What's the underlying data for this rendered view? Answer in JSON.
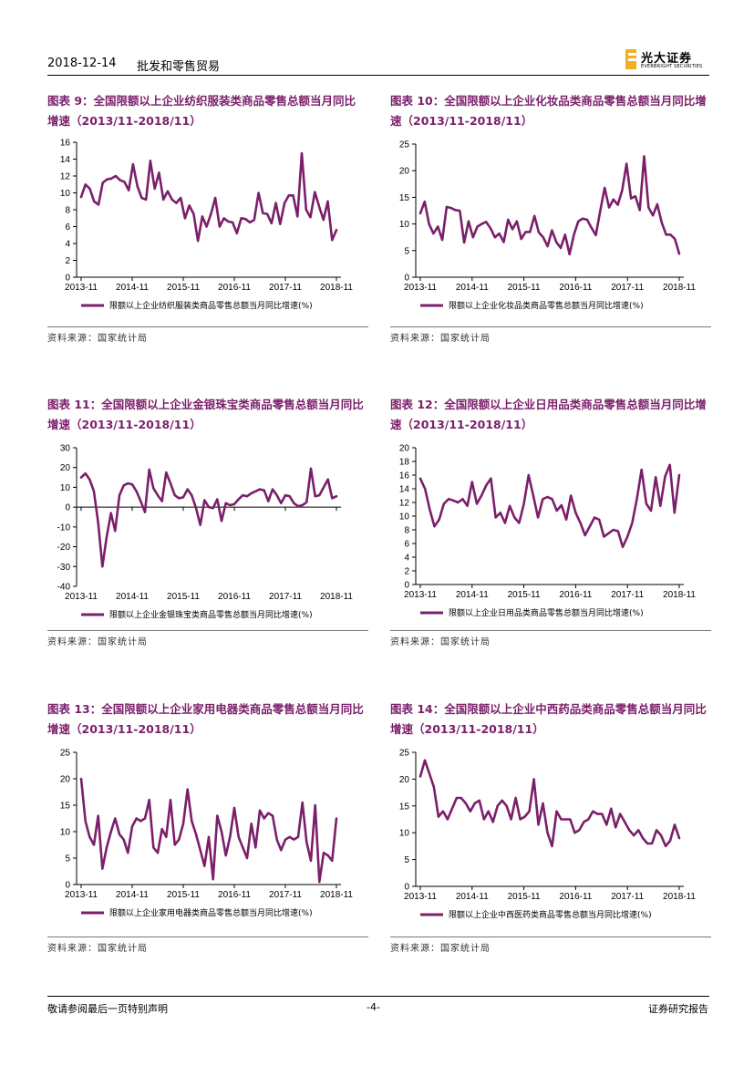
{
  "header": {
    "date": "2018-12-14",
    "sector": "批发和零售贸易",
    "logo_cn": "光大证券",
    "logo_en": "EVERBRIGHT SECURITIES"
  },
  "footer": {
    "disclaimer": "敬请参阅最后一页特别声明",
    "page": "-4-",
    "report_type": "证券研究报告"
  },
  "colors": {
    "series": "#7b1f6a",
    "title": "#7b1f6a"
  },
  "chart_data": [
    {
      "id": "fig9",
      "type": "line",
      "title": "图表 9：全国限额以上企业纺织服装类商品零售总额当月同比增速（2013/11-2018/11）",
      "source": "资料来源：国家统计局",
      "legend": "限额以上企业纺织服装类商品零售总额当月同比增速(%)",
      "x_ticks": [
        "2013-11",
        "2014-11",
        "2015-11",
        "2016-11",
        "2017-11",
        "2018-11"
      ],
      "y_ticks": [
        0,
        2,
        4,
        6,
        8,
        10,
        12,
        14,
        16
      ],
      "ylim": [
        0,
        16
      ],
      "values": [
        9.5,
        11.0,
        10.5,
        9.0,
        8.6,
        11.2,
        11.6,
        11.7,
        12.0,
        11.5,
        11.3,
        10.3,
        13.4,
        10.8,
        9.4,
        9.2,
        13.8,
        10.5,
        12.4,
        9.2,
        10.2,
        9.2,
        8.8,
        9.4,
        7.0,
        8.5,
        7.5,
        4.3,
        7.2,
        6.0,
        7.5,
        9.4,
        6.0,
        7.0,
        6.6,
        6.5,
        5.2,
        7.0,
        6.9,
        6.5,
        6.8,
        10.0,
        7.6,
        7.5,
        6.4,
        8.8,
        6.3,
        8.8,
        9.7,
        9.7,
        7.2,
        14.7,
        8.0,
        7.1,
        10.1,
        8.4,
        6.8,
        9.0,
        4.4,
        5.6
      ]
    },
    {
      "id": "fig10",
      "type": "line",
      "title": "图表 10：全国限额以上企业化妆品类商品零售总额当月同比增速（2013/11-2018/11）",
      "source": "资料来源：国家统计局",
      "legend": "限额以上企业化妆品类商品零售总额当月同比增速(%)",
      "x_ticks": [
        "2013-11",
        "2014-11",
        "2015-11",
        "2016-11",
        "2017-11",
        "2018-11"
      ],
      "y_ticks": [
        0,
        5,
        10,
        15,
        20,
        25
      ],
      "ylim": [
        0,
        25
      ],
      "values": [
        12.0,
        14.2,
        10.0,
        8.2,
        9.5,
        7.0,
        13.2,
        13.0,
        12.6,
        12.5,
        6.5,
        10.5,
        7.5,
        9.5,
        10.0,
        10.4,
        9.2,
        7.5,
        8.2,
        6.6,
        10.8,
        9.0,
        10.5,
        7.2,
        8.5,
        8.5,
        11.5,
        8.4,
        7.5,
        5.8,
        8.8,
        6.6,
        5.5,
        8.0,
        4.3,
        8.0,
        10.5,
        11.0,
        10.8,
        9.3,
        7.9,
        12.5,
        16.8,
        13.1,
        14.6,
        13.6,
        16.3,
        21.3,
        14.8,
        15.2,
        12.6,
        22.7,
        13.1,
        11.6,
        13.7,
        10.3,
        8.0,
        8.0,
        7.2,
        4.4
      ]
    },
    {
      "id": "fig11",
      "type": "line",
      "title": "图表 11：全国限额以上企业金银珠宝类商品零售总额当月同比增速（2013/11-2018/11）",
      "source": "资料来源：国家统计局",
      "legend": "限额以上企业金银珠宝类商品零售总额当月同比增速(%)",
      "x_ticks": [
        "2013-11",
        "2014-11",
        "2015-11",
        "2016-11",
        "2017-11",
        "2018-11"
      ],
      "y_ticks": [
        -40,
        -30,
        -20,
        -10,
        0,
        10,
        20,
        30
      ],
      "ylim": [
        -40,
        30
      ],
      "values": [
        15.0,
        17.0,
        14.0,
        8.0,
        -8.0,
        -30.0,
        -15.0,
        -3.0,
        -12.0,
        6.0,
        11.0,
        12.0,
        11.5,
        8.0,
        3.0,
        -2.5,
        19.0,
        9.5,
        6.0,
        3.0,
        17.5,
        12.0,
        6.0,
        4.5,
        5.0,
        9.0,
        6.0,
        -0.5,
        -9.0,
        3.5,
        0.0,
        -0.5,
        4.0,
        -7.0,
        2.0,
        1.0,
        1.5,
        4.0,
        6.0,
        5.5,
        7.0,
        8.0,
        9.0,
        8.5,
        3.0,
        9.0,
        6.0,
        2.0,
        6.0,
        5.5,
        2.0,
        0.5,
        1.0,
        2.5,
        19.5,
        5.5,
        6.0,
        10.0,
        14.0,
        4.5,
        5.5
      ]
    },
    {
      "id": "fig12",
      "type": "line",
      "title": "图表 12：全国限额以上企业日用品类商品零售总额当月同比增速（2013/11-2018/11）",
      "source": "资料来源：国家统计局",
      "legend": "限额以上企业日用品类商品零售总额当月同比增速(%)",
      "x_ticks": [
        "2013-11",
        "2014-11",
        "2015-11",
        "2016-11",
        "2017-11",
        "2018-11"
      ],
      "y_ticks": [
        0,
        2,
        4,
        6,
        8,
        10,
        12,
        14,
        16,
        18,
        20
      ],
      "ylim": [
        0,
        20
      ],
      "values": [
        15.5,
        14.0,
        11.0,
        8.5,
        9.5,
        11.8,
        12.5,
        12.3,
        12.0,
        12.5,
        11.5,
        15.0,
        11.8,
        13.0,
        14.5,
        15.5,
        9.8,
        10.5,
        9.0,
        11.5,
        9.8,
        9.0,
        11.8,
        16.0,
        13.0,
        9.8,
        12.5,
        12.8,
        12.5,
        10.8,
        11.6,
        9.5,
        13.0,
        10.5,
        9.0,
        7.2,
        8.5,
        9.8,
        9.5,
        7.0,
        7.5,
        8.0,
        7.8,
        5.5,
        7.0,
        9.0,
        12.5,
        16.8,
        11.8,
        10.8,
        15.7,
        11.5,
        15.8,
        17.5,
        10.5,
        16.0
      ]
    },
    {
      "id": "fig13",
      "type": "line",
      "title": "图表 13：全国限额以上企业家用电器类商品零售总额当月同比增速（2013/11-2018/11）",
      "source": "资料来源：国家统计局",
      "legend": "限额以上企业家用电器类商品零售总额当月同比增速(%)",
      "x_ticks": [
        "2013-11",
        "2014-11",
        "2015-11",
        "2016-11",
        "2017-11",
        "2018-11"
      ],
      "y_ticks": [
        0,
        5,
        10,
        15,
        20,
        25
      ],
      "ylim": [
        0,
        25
      ],
      "values": [
        20.0,
        12.0,
        9.0,
        7.5,
        13.0,
        3.0,
        7.0,
        10.0,
        12.5,
        9.5,
        8.5,
        6.0,
        11.0,
        12.5,
        12.0,
        12.5,
        16.0,
        7.0,
        6.0,
        10.5,
        9.0,
        16.0,
        7.5,
        8.5,
        11.5,
        18.0,
        12.0,
        9.5,
        6.5,
        3.5,
        9.0,
        1.0,
        13.0,
        10.0,
        5.5,
        9.0,
        14.5,
        9.0,
        7.0,
        5.0,
        11.5,
        7.0,
        14.0,
        12.5,
        13.5,
        13.0,
        8.5,
        6.5,
        8.5,
        9.0,
        8.5,
        9.0,
        15.5,
        8.0,
        4.5,
        15.0,
        0.5,
        6.0,
        5.5,
        4.5,
        12.5
      ]
    },
    {
      "id": "fig14",
      "type": "line",
      "title": "图表 14：全国限额以上企业中西药品类商品零售总额当月同比增速（2013/11-2018/11）",
      "source": "资料来源：国家统计局",
      "legend": "限额以上企业中西医药类商品零售总额当月同比增速(%)",
      "x_ticks": [
        "2013-11",
        "2014-11",
        "2015-11",
        "2016-11",
        "2017-11",
        "2018-11"
      ],
      "y_ticks": [
        0,
        5,
        10,
        15,
        20,
        25
      ],
      "ylim": [
        0,
        25
      ],
      "values": [
        20.5,
        23.5,
        21.0,
        18.5,
        13.0,
        14.0,
        12.5,
        14.5,
        16.5,
        16.5,
        15.5,
        14.0,
        15.5,
        16.0,
        12.5,
        14.0,
        12.0,
        15.0,
        16.0,
        15.0,
        12.5,
        16.5,
        12.5,
        13.0,
        14.0,
        20.0,
        11.5,
        15.5,
        10.0,
        7.5,
        14.0,
        12.5,
        12.5,
        12.5,
        10.0,
        10.5,
        12.0,
        12.5,
        14.0,
        13.5,
        13.5,
        11.5,
        14.5,
        11.0,
        13.5,
        12.0,
        10.5,
        9.5,
        10.5,
        9.0,
        8.0,
        8.0,
        10.5,
        9.5,
        7.5,
        8.5,
        11.5,
        9.0
      ]
    }
  ]
}
